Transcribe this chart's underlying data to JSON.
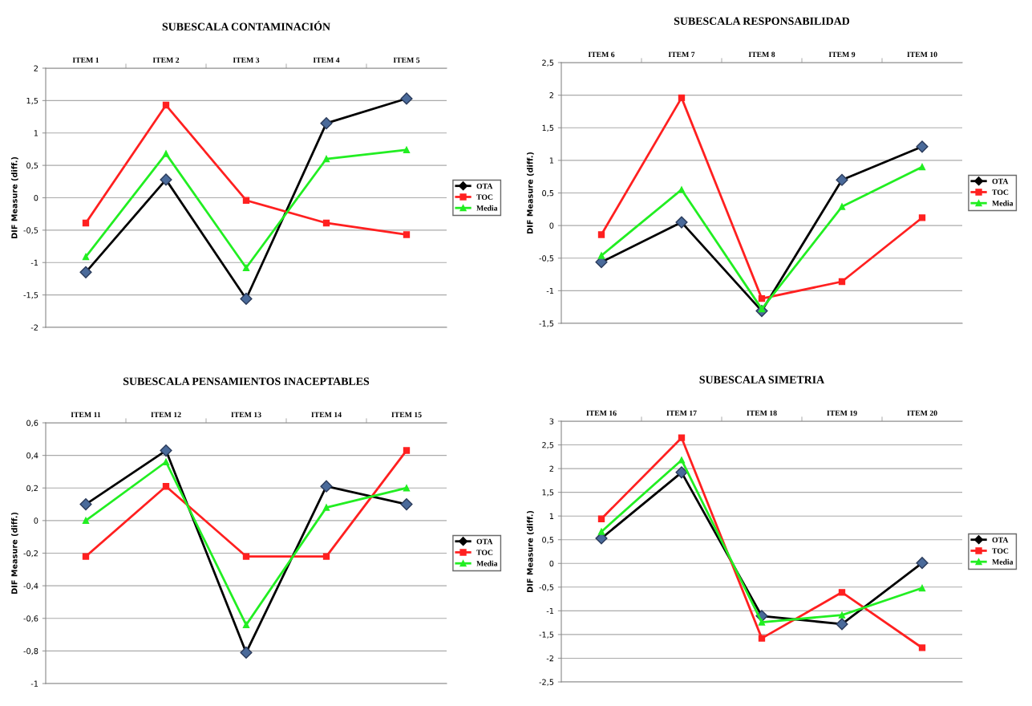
{
  "chart_data": [
    {
      "type": "line",
      "title": "SUBESCALA CONTAMINACIÓN",
      "ylabel": "DIF Measure (diff.)",
      "categories": [
        "ITEM 1",
        "ITEM 2",
        "ITEM 3",
        "ITEM 4",
        "ITEM 5"
      ],
      "ylim": [
        -2,
        2
      ],
      "yticks": [
        -2,
        {
          "value": -1.5,
          "label": "-1,5"
        },
        -1,
        {
          "value": -0.5,
          "label": "-0,5"
        },
        0,
        {
          "value": 0.5,
          "label": "0,5"
        },
        1,
        {
          "value": 1.5,
          "label": "1,5"
        },
        2
      ],
      "grid": "y",
      "legend": "right",
      "series": [
        {
          "name": "OTA",
          "color": "#000000",
          "marker": "diamond",
          "values": [
            -1.15,
            0.28,
            -1.56,
            1.15,
            1.53
          ]
        },
        {
          "name": "TOC",
          "color": "#ff2020",
          "marker": "square",
          "values": [
            -0.39,
            1.43,
            -0.04,
            -0.39,
            -0.57
          ]
        },
        {
          "name": "Media",
          "color": "#22ee22",
          "marker": "triangle",
          "values": [
            -0.91,
            0.68,
            -1.08,
            0.6,
            0.74
          ]
        }
      ]
    },
    {
      "type": "line",
      "title": "SUBESCALA RESPONSABILIDAD",
      "ylabel": "DIF Measure (diff.)",
      "categories": [
        "ITEM 6",
        "ITEM 7",
        "ITEM 8",
        "ITEM 9",
        "ITEM 10"
      ],
      "ylim": [
        -1.5,
        2.5
      ],
      "yticks": [
        {
          "value": -1.5,
          "label": "-1,5"
        },
        -1,
        {
          "value": -0.5,
          "label": "-0,5"
        },
        0,
        {
          "value": 0.5,
          "label": "0,5"
        },
        1,
        {
          "value": 1.5,
          "label": "1,5"
        },
        2,
        {
          "value": 2.5,
          "label": "2,5"
        }
      ],
      "grid": "y",
      "legend": "right",
      "series": [
        {
          "name": "OTA",
          "color": "#000000",
          "marker": "diamond",
          "values": [
            -0.56,
            0.05,
            -1.31,
            0.7,
            1.21
          ]
        },
        {
          "name": "TOC",
          "color": "#ff2020",
          "marker": "square",
          "values": [
            -0.14,
            1.96,
            -1.12,
            -0.86,
            0.12
          ]
        },
        {
          "name": "Media",
          "color": "#22ee22",
          "marker": "triangle",
          "values": [
            -0.46,
            0.55,
            -1.28,
            0.29,
            0.9
          ]
        }
      ]
    },
    {
      "type": "line",
      "title": "SUBESCALA PENSAMIENTOS INACEPTABLES",
      "ylabel": "DIF Measure (diff.)",
      "categories": [
        "ITEM 11",
        "ITEM 12",
        "ITEM 13",
        "ITEM 14",
        "ITEM 15"
      ],
      "ylim": [
        -1,
        0.6
      ],
      "yticks": [
        -1,
        {
          "value": -0.8,
          "label": "-0,8"
        },
        {
          "value": -0.6,
          "label": "-0,6"
        },
        {
          "value": -0.4,
          "label": "-0,4"
        },
        {
          "value": -0.2,
          "label": "-0,2"
        },
        0,
        {
          "value": 0.2,
          "label": "0,2"
        },
        {
          "value": 0.4,
          "label": "0,4"
        },
        {
          "value": 0.6,
          "label": "0,6"
        }
      ],
      "grid": "y",
      "legend": "right",
      "series": [
        {
          "name": "OTA",
          "color": "#000000",
          "marker": "diamond",
          "values": [
            0.1,
            0.43,
            -0.81,
            0.21,
            0.1
          ]
        },
        {
          "name": "TOC",
          "color": "#ff2020",
          "marker": "square",
          "values": [
            -0.22,
            0.21,
            -0.22,
            -0.22,
            0.43
          ]
        },
        {
          "name": "Media",
          "color": "#22ee22",
          "marker": "triangle",
          "values": [
            0.0,
            0.36,
            -0.64,
            0.08,
            0.2
          ]
        }
      ]
    },
    {
      "type": "line",
      "title": "SUBESCALA SIMETRIA",
      "ylabel": "DIF Measure (diff.)",
      "categories": [
        "ITEM 16",
        "ITEM 17",
        "ITEM 18",
        "ITEM 19",
        "ITEM 20"
      ],
      "ylim": [
        -2.5,
        3
      ],
      "yticks": [
        {
          "value": -2.5,
          "label": "-2,5"
        },
        -2,
        {
          "value": -1.5,
          "label": "-1,5"
        },
        -1,
        {
          "value": -0.5,
          "label": "-0,5"
        },
        0,
        {
          "value": 0.5,
          "label": "0,5"
        },
        1,
        {
          "value": 1.5,
          "label": "1,5"
        },
        2,
        {
          "value": 2.5,
          "label": "2,5"
        },
        3
      ],
      "grid": "y",
      "legend": "right",
      "series": [
        {
          "name": "OTA",
          "color": "#000000",
          "marker": "diamond",
          "values": [
            0.53,
            1.92,
            -1.11,
            -1.28,
            0.01
          ]
        },
        {
          "name": "TOC",
          "color": "#ff2020",
          "marker": "square",
          "values": [
            0.94,
            2.65,
            -1.58,
            -0.61,
            -1.78
          ]
        },
        {
          "name": "Media",
          "color": "#22ee22",
          "marker": "triangle",
          "values": [
            0.67,
            2.18,
            -1.24,
            -1.09,
            -0.52
          ]
        }
      ]
    }
  ]
}
